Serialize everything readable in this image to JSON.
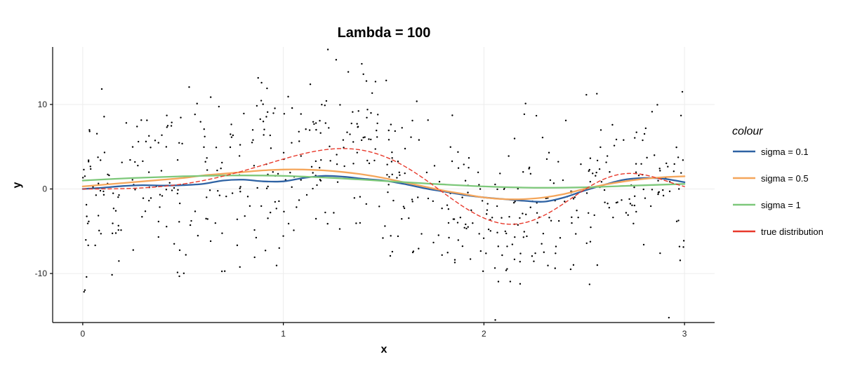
{
  "chart_data": {
    "type": "scatter",
    "title": "Lambda = 100",
    "xlabel": "x",
    "ylabel": "y",
    "xlim": [
      -0.15,
      3.15
    ],
    "ylim": [
      -15.8,
      16.8
    ],
    "x_ticks": [
      0,
      1,
      2,
      3
    ],
    "x_tick_labels": [
      "0",
      "1",
      "2",
      "3"
    ],
    "y_ticks": [
      -10,
      0,
      10
    ],
    "y_tick_labels": [
      "-10",
      "0",
      "10"
    ],
    "grid": true,
    "legend": {
      "title": "colour",
      "placement": "right"
    },
    "scatter": {
      "n": 600,
      "seed": 7,
      "noise_sd": 5,
      "x_range": [
        0,
        3
      ],
      "color": "#000000"
    },
    "series": [
      {
        "name": "sigma = 0.1",
        "color": "#2E62A3",
        "dash": "solid",
        "x": [
          0,
          0.1,
          0.2,
          0.3,
          0.4,
          0.5,
          0.6,
          0.7,
          0.8,
          0.9,
          1.0,
          1.1,
          1.2,
          1.3,
          1.4,
          1.5,
          1.6,
          1.7,
          1.8,
          1.9,
          2.0,
          2.1,
          2.2,
          2.3,
          2.4,
          2.5,
          2.6,
          2.7,
          2.8,
          2.9,
          3.0
        ],
        "values": [
          0.0,
          0.15,
          0.35,
          0.45,
          0.4,
          0.45,
          0.6,
          1.0,
          1.1,
          0.9,
          0.9,
          1.3,
          1.55,
          1.45,
          1.2,
          1.0,
          0.6,
          0.1,
          -0.3,
          -0.7,
          -1.0,
          -1.2,
          -1.4,
          -1.5,
          -1.0,
          -0.2,
          0.5,
          1.1,
          1.3,
          1.2,
          0.8
        ]
      },
      {
        "name": "sigma = 0.5",
        "color": "#F5A65B",
        "dash": "solid",
        "x": [
          0,
          0.1,
          0.2,
          0.3,
          0.4,
          0.5,
          0.6,
          0.7,
          0.8,
          0.9,
          1.0,
          1.1,
          1.2,
          1.3,
          1.4,
          1.5,
          1.6,
          1.7,
          1.8,
          1.9,
          2.0,
          2.1,
          2.2,
          2.3,
          2.4,
          2.5,
          2.6,
          2.7,
          2.8,
          2.9,
          3.0
        ],
        "values": [
          0.3,
          0.5,
          0.7,
          0.9,
          1.1,
          1.3,
          1.6,
          1.8,
          2.0,
          2.2,
          2.3,
          2.3,
          2.2,
          2.0,
          1.7,
          1.3,
          0.8,
          0.3,
          -0.2,
          -0.6,
          -1.0,
          -1.2,
          -1.2,
          -1.0,
          -0.6,
          0.0,
          0.5,
          0.9,
          1.2,
          1.4,
          1.5
        ]
      },
      {
        "name": "sigma = 1",
        "color": "#7DC87A",
        "dash": "solid",
        "x": [
          0,
          0.25,
          0.5,
          0.75,
          1.0,
          1.25,
          1.5,
          1.75,
          2.0,
          2.25,
          2.5,
          2.75,
          3.0
        ],
        "values": [
          1.0,
          1.3,
          1.5,
          1.6,
          1.55,
          1.3,
          0.95,
          0.6,
          0.3,
          0.15,
          0.2,
          0.4,
          0.6
        ]
      },
      {
        "name": "true distribution",
        "color": "#E8392B",
        "dash": "dashed",
        "function": "5*sin(x)*sin(x*x)"
      }
    ]
  }
}
